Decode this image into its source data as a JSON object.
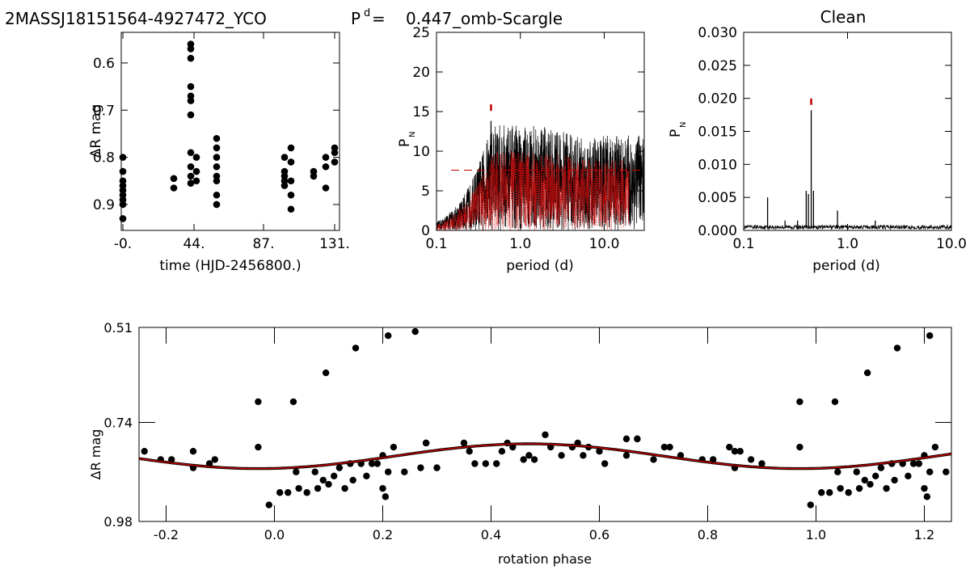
{
  "header": {
    "star_id": "2MASSJ18151564-4927472_YCO",
    "period_label": "P",
    "period_sup": "d",
    "period_eq": "=",
    "period_value": "0.447",
    "method": "_omb-Scargle",
    "clean_title": "Clean"
  },
  "colors": {
    "data": "#000000",
    "model": "#c00000",
    "marker": "#c00000",
    "noise": "#d01010"
  },
  "chart_data": [
    {
      "type": "scatter",
      "name": "light-curve",
      "xlabel": "time (HJD-2456800.)",
      "ylabel": "ΔR mag",
      "xlim": [
        -1,
        134
      ],
      "ylim": [
        0.955,
        0.535
      ],
      "xticks": [
        {
          "v": 0,
          "label": "-0."
        },
        {
          "v": 44,
          "label": "44."
        },
        {
          "v": 87,
          "label": "87."
        },
        {
          "v": 131,
          "label": "131."
        }
      ],
      "yticks": [
        {
          "v": 0.6,
          "label": "0.6"
        },
        {
          "v": 0.7,
          "label": "0.7"
        },
        {
          "v": 0.8,
          "label": "0.8"
        },
        {
          "v": 0.9,
          "label": "0.9"
        }
      ],
      "points": [
        [
          0.0,
          0.8
        ],
        [
          0.0,
          0.83
        ],
        [
          0.0,
          0.85
        ],
        [
          0.0,
          0.86
        ],
        [
          0.0,
          0.87
        ],
        [
          0.0,
          0.88
        ],
        [
          0.0,
          0.89
        ],
        [
          0.0,
          0.9
        ],
        [
          0.0,
          0.93
        ],
        [
          31.5,
          0.845
        ],
        [
          31.5,
          0.865
        ],
        [
          42.0,
          0.56
        ],
        [
          42.0,
          0.57
        ],
        [
          42.0,
          0.59
        ],
        [
          42.0,
          0.65
        ],
        [
          42.0,
          0.67
        ],
        [
          42.0,
          0.68
        ],
        [
          42.0,
          0.71
        ],
        [
          42.0,
          0.79
        ],
        [
          42.0,
          0.82
        ],
        [
          42.0,
          0.84
        ],
        [
          42.0,
          0.855
        ],
        [
          45.5,
          0.8
        ],
        [
          45.5,
          0.83
        ],
        [
          45.5,
          0.85
        ],
        [
          58.0,
          0.76
        ],
        [
          58.0,
          0.78
        ],
        [
          58.0,
          0.8
        ],
        [
          58.0,
          0.82
        ],
        [
          58.0,
          0.84
        ],
        [
          58.0,
          0.85
        ],
        [
          58.0,
          0.88
        ],
        [
          58.0,
          0.9
        ],
        [
          100.0,
          0.8
        ],
        [
          100.0,
          0.83
        ],
        [
          100.0,
          0.84
        ],
        [
          100.0,
          0.85
        ],
        [
          100.0,
          0.86
        ],
        [
          104.0,
          0.78
        ],
        [
          104.0,
          0.81
        ],
        [
          104.0,
          0.85
        ],
        [
          104.0,
          0.88
        ],
        [
          104.0,
          0.91
        ],
        [
          118.0,
          0.83
        ],
        [
          118.0,
          0.84
        ],
        [
          125.5,
          0.8
        ],
        [
          125.5,
          0.82
        ],
        [
          125.5,
          0.865
        ],
        [
          131.0,
          0.78
        ],
        [
          131.0,
          0.79
        ],
        [
          131.0,
          0.81
        ]
      ]
    },
    {
      "type": "line",
      "name": "periodogram",
      "xlabel": "period (d)",
      "ylabel": "P",
      "ylabel_sub": "N",
      "xscale": "log",
      "xlim": [
        0.1,
        30
      ],
      "ylim": [
        0,
        25
      ],
      "xticks": [
        {
          "v": 0.1,
          "label": "0.1"
        },
        {
          "v": 1.0,
          "label": "1.0"
        },
        {
          "v": 10.0,
          "label": "10.0"
        }
      ],
      "yticks": [
        {
          "v": 0,
          "label": "0"
        },
        {
          "v": 5,
          "label": "5"
        },
        {
          "v": 10,
          "label": "10"
        },
        {
          "v": 15,
          "label": "15"
        },
        {
          "v": 20,
          "label": "20"
        },
        {
          "v": 25,
          "label": "25"
        }
      ],
      "false_alarm_level": 7.6,
      "peak_period": 0.447,
      "peak_marker_y": 15.5
    },
    {
      "type": "line",
      "name": "clean",
      "title": "Clean",
      "xlabel": "period (d)",
      "ylabel": "P",
      "ylabel_sub": "N",
      "xscale": "log",
      "xlim": [
        0.1,
        10
      ],
      "ylim": [
        0,
        0.03
      ],
      "xticks": [
        {
          "v": 0.1,
          "label": "0.1"
        },
        {
          "v": 1.0,
          "label": "1.0"
        },
        {
          "v": 10.0,
          "label": "10.0"
        }
      ],
      "yticks": [
        {
          "v": 0,
          "label": "0.000"
        },
        {
          "v": 0.005,
          "label": "0.005"
        },
        {
          "v": 0.01,
          "label": "0.010"
        },
        {
          "v": 0.015,
          "label": "0.015"
        },
        {
          "v": 0.02,
          "label": "0.020"
        },
        {
          "v": 0.025,
          "label": "0.025"
        },
        {
          "v": 0.03,
          "label": "0.030"
        }
      ],
      "peak_marker_y": 0.0195,
      "spikes": [
        [
          0.17,
          0.005
        ],
        [
          0.25,
          0.0015
        ],
        [
          0.33,
          0.0015
        ],
        [
          0.4,
          0.006
        ],
        [
          0.42,
          0.0055
        ],
        [
          0.447,
          0.0182
        ],
        [
          0.47,
          0.006
        ],
        [
          0.8,
          0.003
        ],
        [
          1.85,
          0.0015
        ],
        [
          2.2,
          0.0008
        ]
      ]
    },
    {
      "type": "scatter",
      "name": "phased",
      "xlabel": "rotation phase",
      "ylabel": "ΔR mag",
      "xlim": [
        -0.25,
        1.25
      ],
      "ylim": [
        0.98,
        0.51
      ],
      "xticks": [
        {
          "v": -0.2,
          "label": "-0.2"
        },
        {
          "v": 0.0,
          "label": "0.0"
        },
        {
          "v": 0.2,
          "label": "0.2"
        },
        {
          "v": 0.4,
          "label": "0.4"
        },
        {
          "v": 0.6,
          "label": "0.6"
        },
        {
          "v": 0.8,
          "label": "0.8"
        },
        {
          "v": 1.0,
          "label": "1.0"
        },
        {
          "v": 1.2,
          "label": "1.2"
        }
      ],
      "yticks": [
        {
          "v": 0.51,
          "label": "0.51"
        },
        {
          "v": 0.74,
          "label": "0.74"
        },
        {
          "v": 0.98,
          "label": "0.98"
        }
      ],
      "model": {
        "mean": 0.822,
        "amplitude": 0.03,
        "phase_of_max": 0.47
      },
      "points": [
        [
          -0.24,
          0.81
        ],
        [
          -0.21,
          0.83
        ],
        [
          -0.19,
          0.83
        ],
        [
          -0.15,
          0.81
        ],
        [
          -0.15,
          0.85
        ],
        [
          -0.12,
          0.84
        ],
        [
          -0.11,
          0.83
        ],
        [
          -0.03,
          0.8
        ],
        [
          -0.03,
          0.69
        ],
        [
          -0.01,
          0.94
        ],
        [
          0.01,
          0.91
        ],
        [
          0.025,
          0.91
        ],
        [
          0.035,
          0.69
        ],
        [
          0.04,
          0.86
        ],
        [
          0.045,
          0.9
        ],
        [
          0.06,
          0.91
        ],
        [
          0.075,
          0.86
        ],
        [
          0.08,
          0.9
        ],
        [
          0.09,
          0.88
        ],
        [
          0.095,
          0.62
        ],
        [
          0.1,
          0.89
        ],
        [
          0.11,
          0.87
        ],
        [
          0.12,
          0.85
        ],
        [
          0.13,
          0.9
        ],
        [
          0.14,
          0.84
        ],
        [
          0.145,
          0.88
        ],
        [
          0.15,
          0.56
        ],
        [
          0.16,
          0.84
        ],
        [
          0.17,
          0.87
        ],
        [
          0.18,
          0.84
        ],
        [
          0.19,
          0.84
        ],
        [
          0.2,
          0.9
        ],
        [
          0.2,
          0.82
        ],
        [
          0.205,
          0.92
        ],
        [
          0.21,
          0.86
        ],
        [
          0.21,
          0.53
        ],
        [
          0.22,
          0.8
        ],
        [
          0.24,
          0.86
        ],
        [
          0.26,
          0.52
        ],
        [
          0.27,
          0.85
        ],
        [
          0.28,
          0.79
        ],
        [
          0.28,
          0.79
        ],
        [
          0.3,
          0.85
        ],
        [
          0.35,
          0.79
        ],
        [
          0.36,
          0.81
        ],
        [
          0.37,
          0.84
        ],
        [
          0.39,
          0.84
        ],
        [
          0.41,
          0.84
        ],
        [
          0.42,
          0.81
        ],
        [
          0.43,
          0.79
        ],
        [
          0.44,
          0.8
        ],
        [
          0.46,
          0.83
        ],
        [
          0.47,
          0.82
        ],
        [
          0.48,
          0.83
        ],
        [
          0.5,
          0.77
        ],
        [
          0.51,
          0.8
        ],
        [
          0.53,
          0.82
        ],
        [
          0.55,
          0.8
        ],
        [
          0.56,
          0.79
        ],
        [
          0.57,
          0.82
        ],
        [
          0.58,
          0.8
        ],
        [
          0.6,
          0.81
        ],
        [
          0.61,
          0.84
        ],
        [
          0.65,
          0.78
        ],
        [
          0.65,
          0.82
        ],
        [
          0.67,
          0.78
        ],
        [
          0.67,
          0.78
        ],
        [
          0.7,
          0.83
        ],
        [
          0.72,
          0.8
        ],
        [
          0.73,
          0.8
        ],
        [
          0.75,
          0.82
        ],
        [
          0.79,
          0.83
        ],
        [
          0.81,
          0.83
        ],
        [
          0.84,
          0.8
        ],
        [
          0.85,
          0.81
        ],
        [
          0.85,
          0.85
        ],
        [
          0.86,
          0.81
        ],
        [
          0.88,
          0.83
        ],
        [
          0.9,
          0.84
        ],
        [
          0.97,
          0.8
        ],
        [
          0.97,
          0.69
        ],
        [
          0.99,
          0.94
        ],
        [
          1.01,
          0.91
        ],
        [
          1.025,
          0.91
        ],
        [
          1.035,
          0.69
        ],
        [
          1.04,
          0.86
        ],
        [
          1.045,
          0.9
        ],
        [
          1.06,
          0.91
        ],
        [
          1.075,
          0.86
        ],
        [
          1.08,
          0.9
        ],
        [
          1.09,
          0.88
        ],
        [
          1.095,
          0.62
        ],
        [
          1.1,
          0.89
        ],
        [
          1.11,
          0.87
        ],
        [
          1.12,
          0.85
        ],
        [
          1.13,
          0.9
        ],
        [
          1.14,
          0.84
        ],
        [
          1.145,
          0.88
        ],
        [
          1.15,
          0.56
        ],
        [
          1.16,
          0.84
        ],
        [
          1.17,
          0.87
        ],
        [
          1.18,
          0.84
        ],
        [
          1.19,
          0.84
        ],
        [
          1.2,
          0.9
        ],
        [
          1.2,
          0.82
        ],
        [
          1.205,
          0.92
        ],
        [
          1.21,
          0.86
        ],
        [
          1.21,
          0.53
        ],
        [
          1.22,
          0.8
        ],
        [
          1.24,
          0.86
        ]
      ]
    }
  ]
}
